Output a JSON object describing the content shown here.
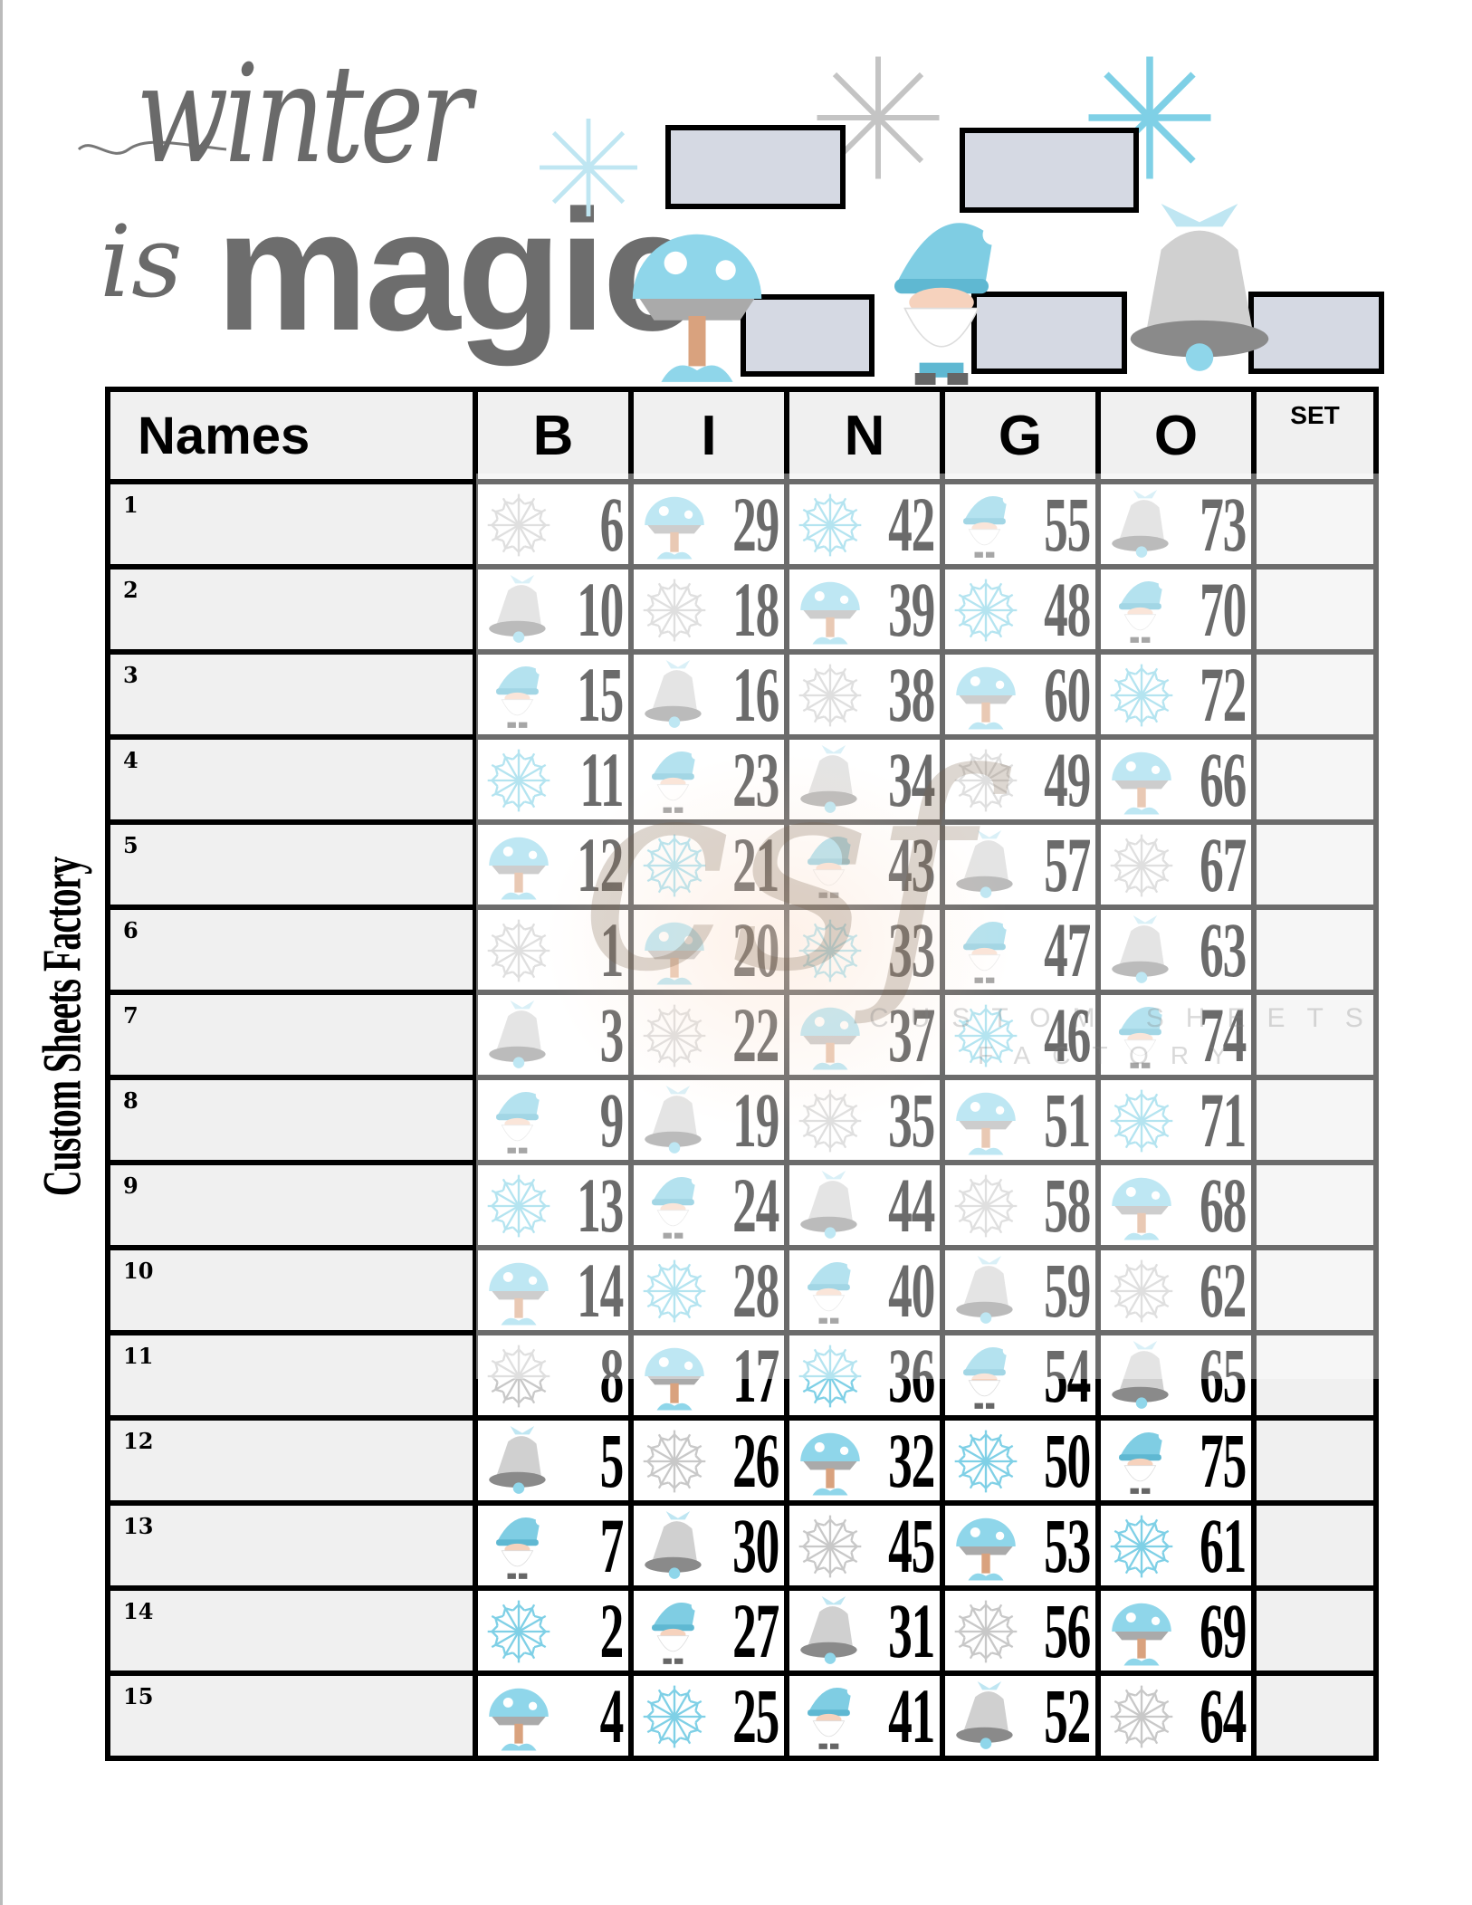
{
  "header": {
    "title_line1": "winter",
    "title_line2": "is",
    "title_line3": "magic"
  },
  "side_label": "Custom Sheets Factory",
  "watermark": {
    "logo": "csf",
    "line1": "CUSTOM SHEETS",
    "line2": "FACTORY"
  },
  "colors": {
    "border": "#000000",
    "box_fill": "#d5d9e3",
    "cell_fill": "#f0f0f0",
    "icon_blue": "#7fd0e6",
    "icon_gray": "#c8c8c8"
  },
  "table": {
    "headers": {
      "names": "Names",
      "b": "B",
      "i": "I",
      "n": "N",
      "g": "G",
      "o": "O",
      "set": "SET"
    },
    "rows": [
      {
        "label": "1",
        "cells": [
          [
            6,
            "snowflake-gray"
          ],
          [
            29,
            "mushroom"
          ],
          [
            42,
            "snowflake-blue"
          ],
          [
            55,
            "gnome"
          ],
          [
            73,
            "bell"
          ]
        ]
      },
      {
        "label": "2",
        "cells": [
          [
            10,
            "bell"
          ],
          [
            18,
            "snowflake-gray"
          ],
          [
            39,
            "mushroom"
          ],
          [
            48,
            "snowflake-blue"
          ],
          [
            70,
            "gnome"
          ]
        ]
      },
      {
        "label": "3",
        "cells": [
          [
            15,
            "gnome"
          ],
          [
            16,
            "bell"
          ],
          [
            38,
            "snowflake-gray"
          ],
          [
            60,
            "mushroom"
          ],
          [
            72,
            "snowflake-blue"
          ]
        ]
      },
      {
        "label": "4",
        "cells": [
          [
            11,
            "snowflake-blue"
          ],
          [
            23,
            "gnome"
          ],
          [
            34,
            "bell"
          ],
          [
            49,
            "snowflake-gray"
          ],
          [
            66,
            "mushroom"
          ]
        ]
      },
      {
        "label": "5",
        "cells": [
          [
            12,
            "mushroom"
          ],
          [
            21,
            "snowflake-blue"
          ],
          [
            43,
            "gnome"
          ],
          [
            57,
            "bell"
          ],
          [
            67,
            "snowflake-gray"
          ]
        ]
      },
      {
        "label": "6",
        "cells": [
          [
            1,
            "snowflake-gray"
          ],
          [
            20,
            "mushroom"
          ],
          [
            33,
            "snowflake-blue"
          ],
          [
            47,
            "gnome"
          ],
          [
            63,
            "bell"
          ]
        ]
      },
      {
        "label": "7",
        "cells": [
          [
            3,
            "bell"
          ],
          [
            22,
            "snowflake-gray"
          ],
          [
            37,
            "mushroom"
          ],
          [
            46,
            "snowflake-blue"
          ],
          [
            74,
            "gnome"
          ]
        ]
      },
      {
        "label": "8",
        "cells": [
          [
            9,
            "gnome"
          ],
          [
            19,
            "bell"
          ],
          [
            35,
            "snowflake-gray"
          ],
          [
            51,
            "mushroom"
          ],
          [
            71,
            "snowflake-blue"
          ]
        ]
      },
      {
        "label": "9",
        "cells": [
          [
            13,
            "snowflake-blue"
          ],
          [
            24,
            "gnome"
          ],
          [
            44,
            "bell"
          ],
          [
            58,
            "snowflake-gray"
          ],
          [
            68,
            "mushroom"
          ]
        ]
      },
      {
        "label": "10",
        "cells": [
          [
            14,
            "mushroom"
          ],
          [
            28,
            "snowflake-blue"
          ],
          [
            40,
            "gnome"
          ],
          [
            59,
            "bell"
          ],
          [
            62,
            "snowflake-gray"
          ]
        ]
      },
      {
        "label": "11",
        "cells": [
          [
            8,
            "snowflake-gray"
          ],
          [
            17,
            "mushroom"
          ],
          [
            36,
            "snowflake-blue"
          ],
          [
            54,
            "gnome"
          ],
          [
            65,
            "bell"
          ]
        ]
      },
      {
        "label": "12",
        "cells": [
          [
            5,
            "bell"
          ],
          [
            26,
            "snowflake-gray"
          ],
          [
            32,
            "mushroom"
          ],
          [
            50,
            "snowflake-blue"
          ],
          [
            75,
            "gnome"
          ]
        ]
      },
      {
        "label": "13",
        "cells": [
          [
            7,
            "gnome"
          ],
          [
            30,
            "bell"
          ],
          [
            45,
            "snowflake-gray"
          ],
          [
            53,
            "mushroom"
          ],
          [
            61,
            "snowflake-blue"
          ]
        ]
      },
      {
        "label": "14",
        "cells": [
          [
            2,
            "snowflake-blue"
          ],
          [
            27,
            "gnome"
          ],
          [
            31,
            "bell"
          ],
          [
            56,
            "snowflake-gray"
          ],
          [
            69,
            "mushroom"
          ]
        ]
      },
      {
        "label": "15",
        "cells": [
          [
            4,
            "mushroom"
          ],
          [
            25,
            "snowflake-blue"
          ],
          [
            41,
            "gnome"
          ],
          [
            52,
            "bell"
          ],
          [
            64,
            "snowflake-gray"
          ]
        ]
      }
    ]
  }
}
